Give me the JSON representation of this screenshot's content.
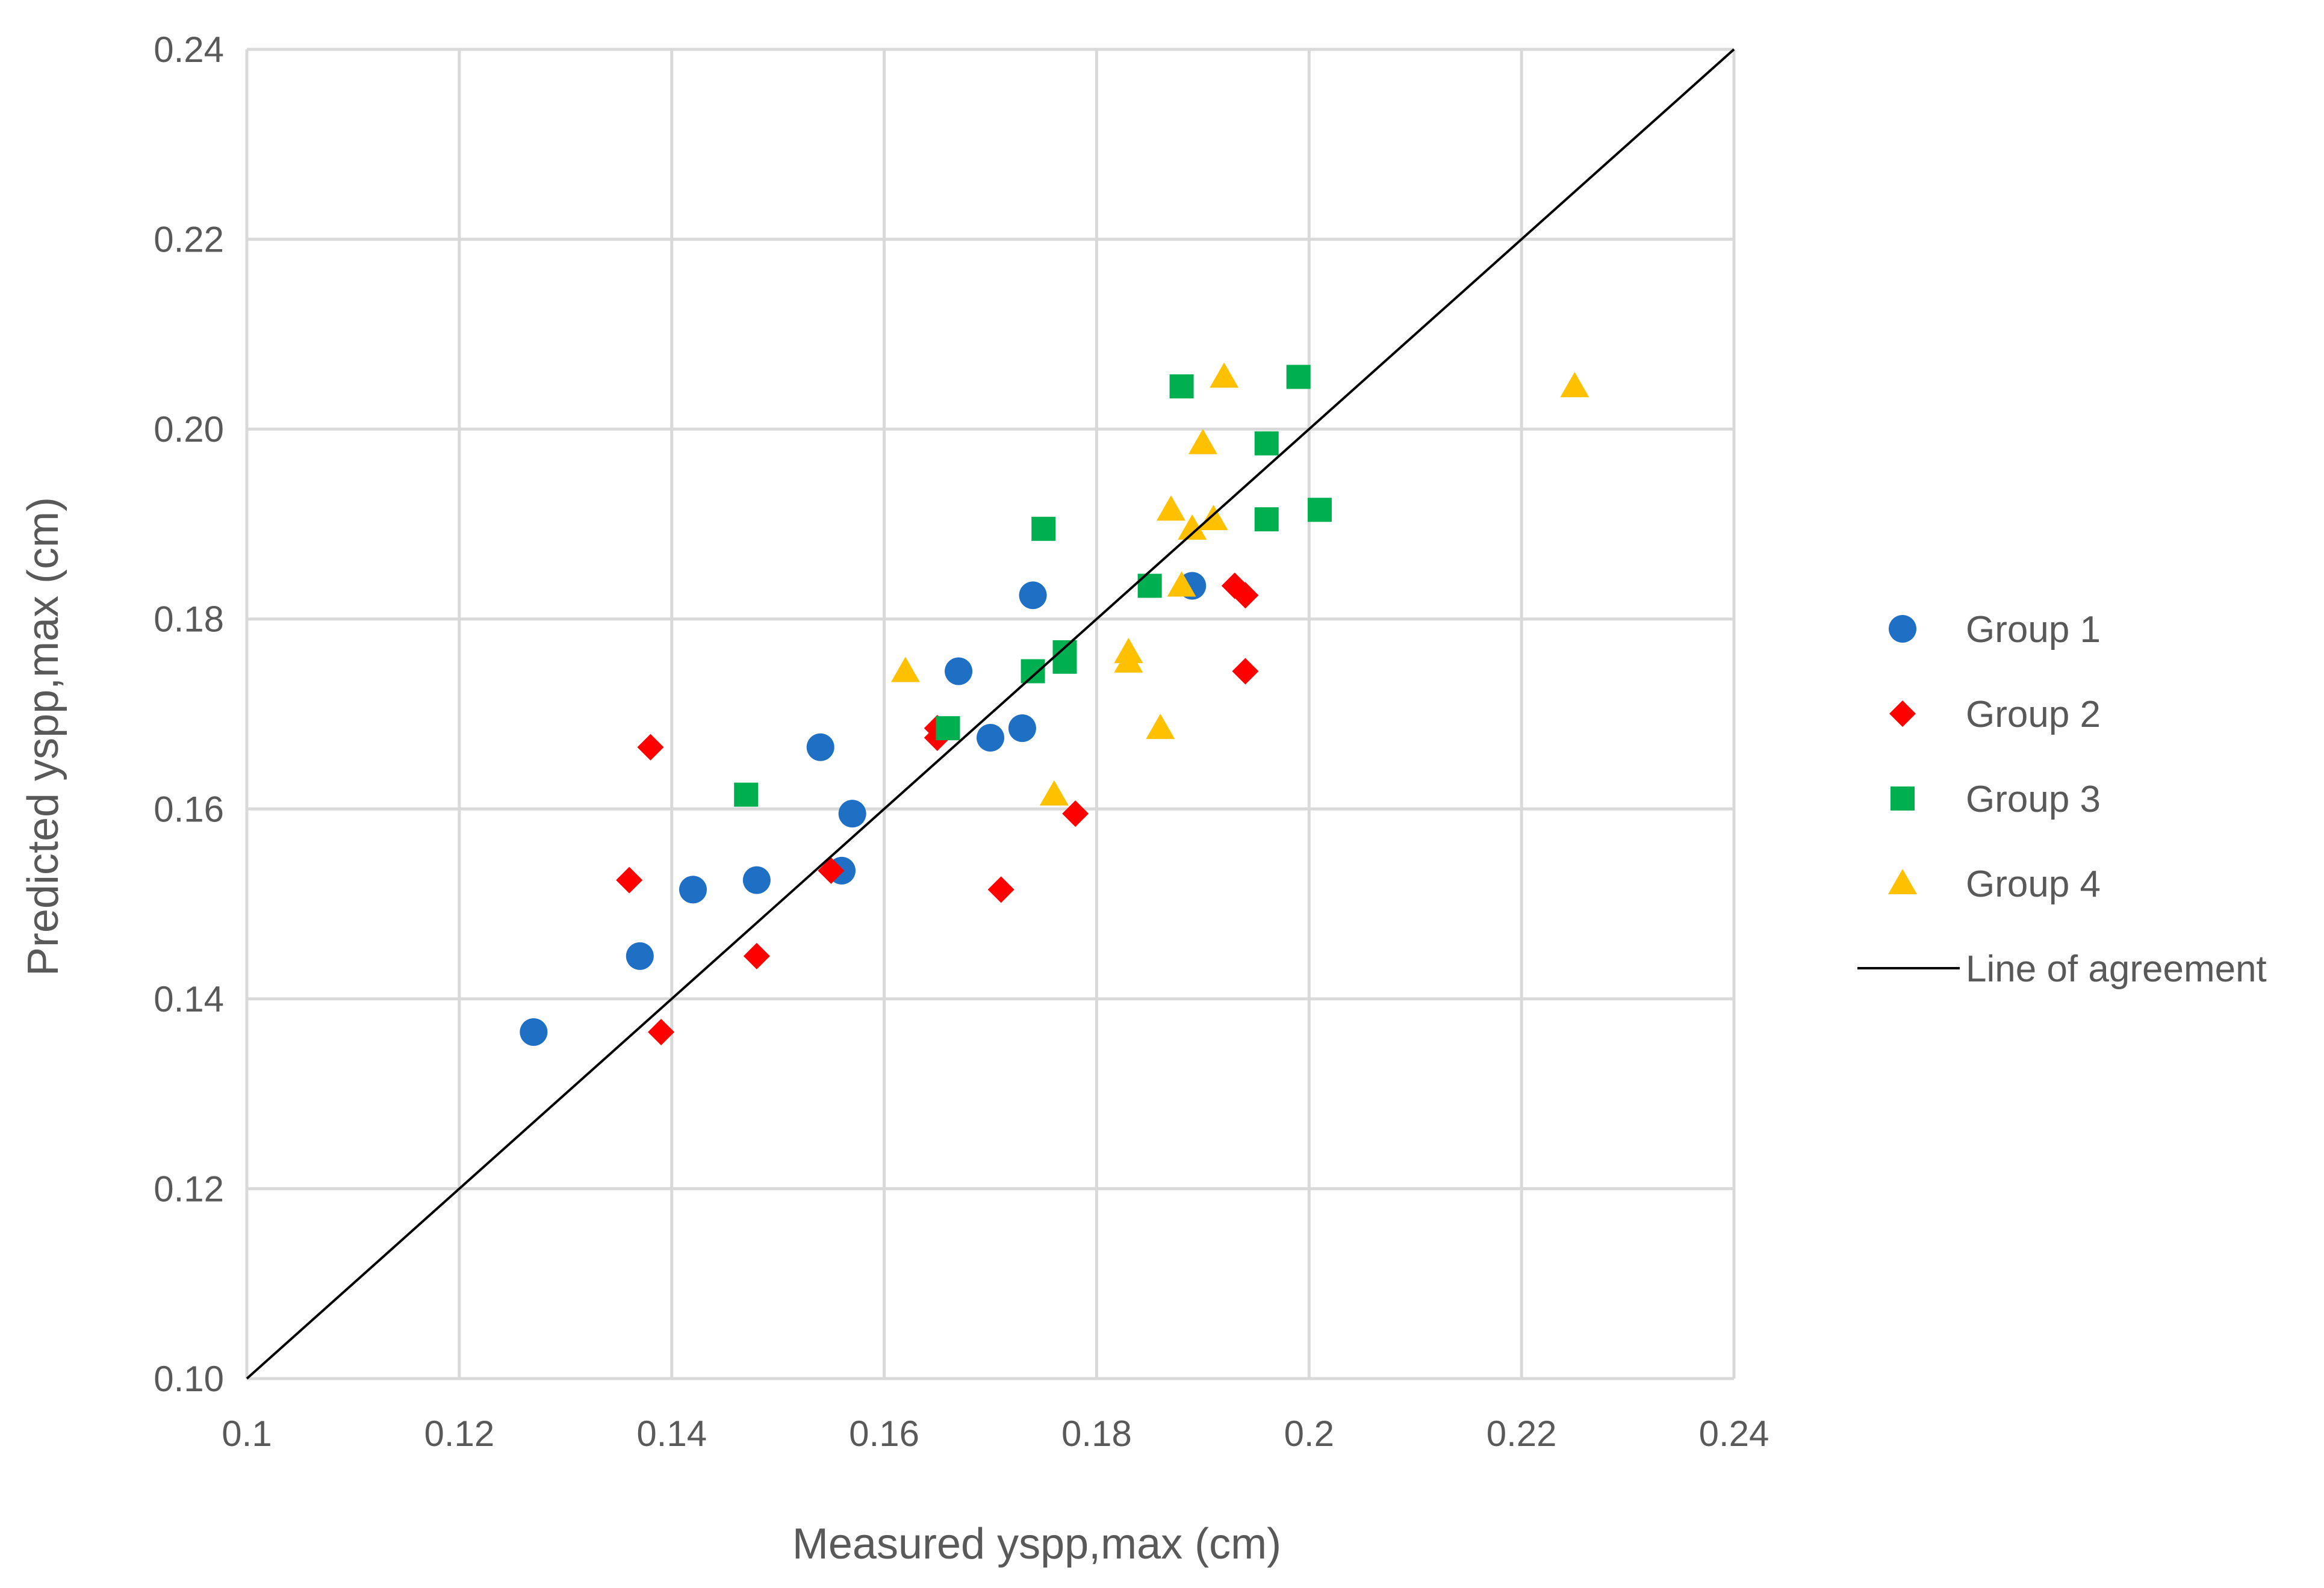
{
  "chart_data": {
    "type": "scatter",
    "title": "",
    "xlabel": "Measured yspp,max  (cm)",
    "ylabel": "Predicted yspp,max (cm)",
    "xlim": [
      0.1,
      0.24
    ],
    "ylim": [
      0.1,
      0.24
    ],
    "x_ticks": [
      "0.1",
      "0.12",
      "0.14",
      "0.16",
      "0.18",
      "0.2",
      "0.22",
      "0.24"
    ],
    "y_ticks": [
      "0.10",
      "0.12",
      "0.14",
      "0.16",
      "0.18",
      "0.20",
      "0.22",
      "0.24"
    ],
    "grid": true,
    "legend_position": "right",
    "series": [
      {
        "name": "Group 1",
        "marker": "circle",
        "color": "#1f6fc5",
        "x": [
          0.127,
          0.137,
          0.142,
          0.148,
          0.154,
          0.156,
          0.157,
          0.167,
          0.17,
          0.173,
          0.174,
          0.189
        ],
        "y": [
          0.1365,
          0.1445,
          0.1515,
          0.1525,
          0.1665,
          0.1535,
          0.1595,
          0.1745,
          0.1675,
          0.1685,
          0.1825,
          0.1835
        ]
      },
      {
        "name": "Group 2",
        "marker": "diamond",
        "color": "#ff0000",
        "x": [
          0.136,
          0.138,
          0.139,
          0.148,
          0.155,
          0.165,
          0.165,
          0.171,
          0.178,
          0.193,
          0.194,
          0.194
        ],
        "y": [
          0.1525,
          0.1665,
          0.1365,
          0.1445,
          0.1535,
          0.1675,
          0.1685,
          0.1515,
          0.1595,
          0.1835,
          0.1825,
          0.1745
        ]
      },
      {
        "name": "Group 3",
        "marker": "square",
        "color": "#00b050",
        "x": [
          0.147,
          0.166,
          0.174,
          0.175,
          0.177,
          0.177,
          0.185,
          0.188,
          0.196,
          0.196,
          0.199,
          0.201
        ],
        "y": [
          0.1615,
          0.1685,
          0.1745,
          0.1895,
          0.1765,
          0.1755,
          0.1835,
          0.2045,
          0.1985,
          0.1905,
          0.2055,
          0.1915
        ]
      },
      {
        "name": "Group 4",
        "marker": "triangle",
        "color": "#ffc000",
        "x": [
          0.162,
          0.176,
          0.183,
          0.183,
          0.186,
          0.187,
          0.188,
          0.189,
          0.19,
          0.191,
          0.192,
          0.225
        ],
        "y": [
          0.1745,
          0.1615,
          0.1765,
          0.1755,
          0.1685,
          0.1915,
          0.1835,
          0.1895,
          0.1985,
          0.1905,
          0.2055,
          0.2045
        ]
      },
      {
        "name": "Line of agreement",
        "marker": "line",
        "color": "#000000",
        "x": [
          0.1,
          0.24
        ],
        "y": [
          0.1,
          0.24
        ]
      }
    ]
  }
}
